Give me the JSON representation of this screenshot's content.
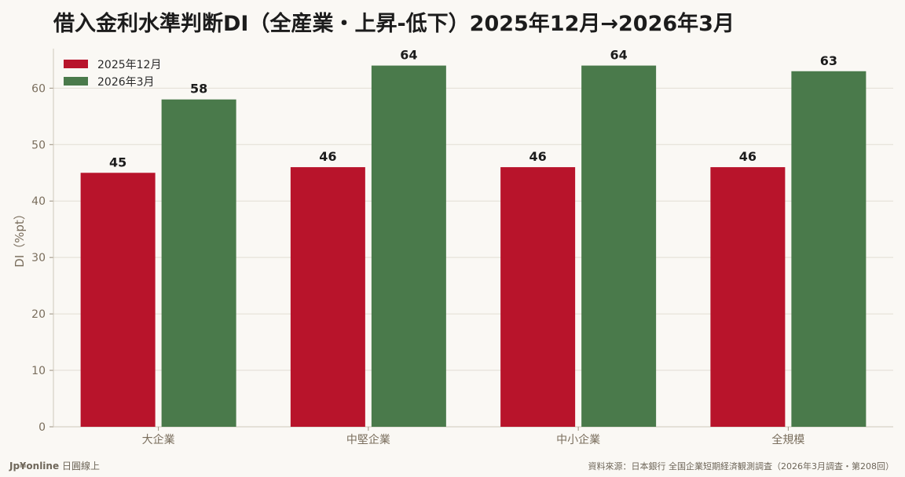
{
  "footer": {
    "brand": "Jp¥online",
    "brand_sub": "日圓線上",
    "source": "資料來源：日本銀行 全国企業短期経済観測調査（2026年3月調査・第208回）"
  },
  "colors": {
    "series_1": "#b8142b",
    "series_2": "#4a7a4b",
    "grid": "#e2ddd4",
    "axis_text": "#7a6e5d",
    "value_text": "#1c1c1c"
  },
  "chart_data": {
    "type": "bar",
    "title": "借入金利水準判断DI（全産業・上昇-低下）2025年12月→2026年3月",
    "xlabel": "",
    "ylabel": "DI（%pt）",
    "categories": [
      "大企業",
      "中堅企業",
      "中小企業",
      "全規模"
    ],
    "series": [
      {
        "name": "2025年12月",
        "values": [
          45,
          46,
          46,
          46
        ]
      },
      {
        "name": "2026年3月",
        "values": [
          58,
          64,
          64,
          63
        ]
      }
    ],
    "ylim": [
      0,
      67
    ],
    "yticks": [
      0,
      10,
      20,
      30,
      40,
      50,
      60
    ],
    "grid": true,
    "legend": "top-left"
  }
}
